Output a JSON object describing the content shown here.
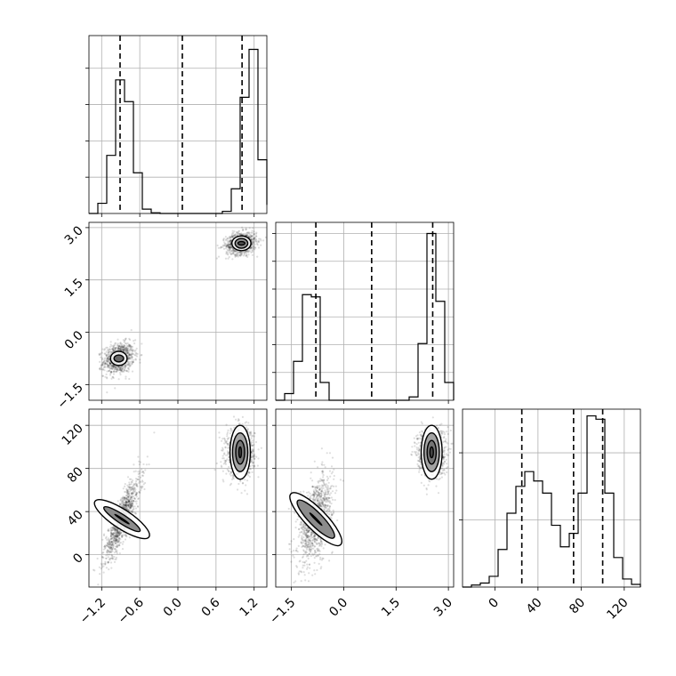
{
  "chart_data": {
    "type": "corner",
    "grid": true,
    "parameters": [
      {
        "id": "p0",
        "range": [
          -1.4,
          1.4
        ],
        "ticks": [
          -1.2,
          -0.6,
          0.0,
          0.6,
          1.2
        ],
        "tick_labels": [
          "−1.2",
          "−0.6",
          "0.0",
          "0.6",
          "1.2"
        ],
        "quantiles": [
          -0.91,
          0.07,
          1.01
        ]
      },
      {
        "id": "p1",
        "range": [
          -1.95,
          3.15
        ],
        "ticks": [
          -1.5,
          0.0,
          1.5,
          3.0
        ],
        "tick_labels": [
          "−1.5",
          "0.0",
          "1.5",
          "3.0"
        ],
        "quantiles": [
          -0.8,
          0.8,
          2.55
        ]
      },
      {
        "id": "p2",
        "range": [
          -30,
          135
        ],
        "ticks": [
          0,
          40,
          80,
          120
        ],
        "tick_labels": [
          "0",
          "40",
          "80",
          "120"
        ],
        "quantiles": [
          25,
          73,
          100
        ]
      }
    ],
    "histograms": [
      {
        "param": "p0",
        "edges": [
          -1.4,
          -1.26,
          -1.12,
          -0.98,
          -0.84,
          -0.7,
          -0.56,
          -0.42,
          -0.28,
          -0.14,
          0.0,
          0.14,
          0.28,
          0.42,
          0.56,
          0.7,
          0.84,
          0.98,
          1.12,
          1.26,
          1.4
        ],
        "counts": [
          0,
          14,
          80,
          184,
          154,
          56,
          6,
          1,
          0,
          0,
          0,
          0,
          0,
          0,
          0,
          3,
          34,
          160,
          226,
          74,
          12
        ],
        "ymax": 245,
        "yticks": [
          50,
          100,
          150,
          200
        ]
      },
      {
        "param": "p1",
        "edges": [
          -1.95,
          -1.695,
          -1.44,
          -1.185,
          -0.93,
          -0.675,
          -0.42,
          -0.165,
          0.09,
          0.345,
          0.6,
          0.855,
          1.11,
          1.365,
          1.62,
          1.875,
          2.13,
          2.385,
          2.64,
          2.895,
          3.15
        ],
        "counts": [
          0,
          12,
          70,
          190,
          186,
          32,
          0,
          0,
          0,
          0,
          0,
          0,
          0,
          0,
          0,
          6,
          102,
          300,
          178,
          32,
          0
        ],
        "ymax": 320,
        "yticks": [
          50,
          100,
          150,
          200,
          250,
          300
        ]
      },
      {
        "param": "p2",
        "edges": [
          -30,
          -21.75,
          -13.5,
          -5.25,
          3,
          11.25,
          19.5,
          27.75,
          36,
          44.25,
          52.5,
          60.75,
          69,
          77.25,
          85.5,
          93.75,
          102,
          110.25,
          118.5,
          126.75,
          135
        ],
        "counts": [
          0,
          3,
          6,
          16,
          56,
          110,
          150,
          172,
          158,
          140,
          92,
          60,
          80,
          140,
          255,
          250,
          140,
          44,
          12,
          4,
          0
        ],
        "ymax": 265,
        "yticks": [
          100,
          200
        ]
      }
    ],
    "panels_2d": [
      {
        "x": "p0",
        "y": "p1",
        "clusters": [
          {
            "center": [
              -0.93,
              -0.75
            ],
            "sd": [
              0.12,
              0.22
            ],
            "rho": 0.2,
            "n": 900,
            "levels": [
              [
                0.075,
                0.1
              ],
              [
                0.13,
                0.2
              ]
            ]
          },
          {
            "center": [
              1.0,
              2.55
            ],
            "sd": [
              0.12,
              0.16
            ],
            "rho": 0.2,
            "n": 900,
            "levels": [
              [
                0.055,
                0.05
              ],
              [
                0.1,
                0.14
              ],
              [
                0.15,
                0.21
              ]
            ]
          }
        ]
      },
      {
        "x": "p0",
        "y": "p2",
        "clusters": [
          {
            "center": [
              -0.88,
              33
            ],
            "sd": [
              0.14,
              19
            ],
            "rho": 0.85,
            "n": 1100,
            "levels": [
              [
                0.01,
                8
              ],
              [
                0.07,
                20
              ],
              [
                0.15,
                30
              ]
            ]
          },
          {
            "center": [
              0.98,
              95
            ],
            "sd": [
              0.11,
              11
            ],
            "rho": 0.0,
            "n": 1000,
            "levels": [
              [
                0.02,
                5
              ],
              [
                0.07,
                11
              ],
              [
                0.12,
                18
              ],
              [
                0.16,
                25
              ]
            ]
          }
        ]
      },
      {
        "x": "p1",
        "y": "p2",
        "clusters": [
          {
            "center": [
              -0.8,
              33
            ],
            "sd": [
              0.24,
              20
            ],
            "rho": 0.45,
            "n": 1100,
            "levels": [
              [
                0.02,
                8
              ],
              [
                0.19,
                24
              ],
              [
                0.3,
                33
              ]
            ]
          },
          {
            "center": [
              2.52,
              95
            ],
            "sd": [
              0.2,
              11
            ],
            "rho": 0.0,
            "n": 1000,
            "levels": [
              [
                0.05,
                5
              ],
              [
                0.13,
                11
              ],
              [
                0.22,
                18
              ],
              [
                0.3,
                25
              ]
            ]
          }
        ]
      }
    ]
  }
}
